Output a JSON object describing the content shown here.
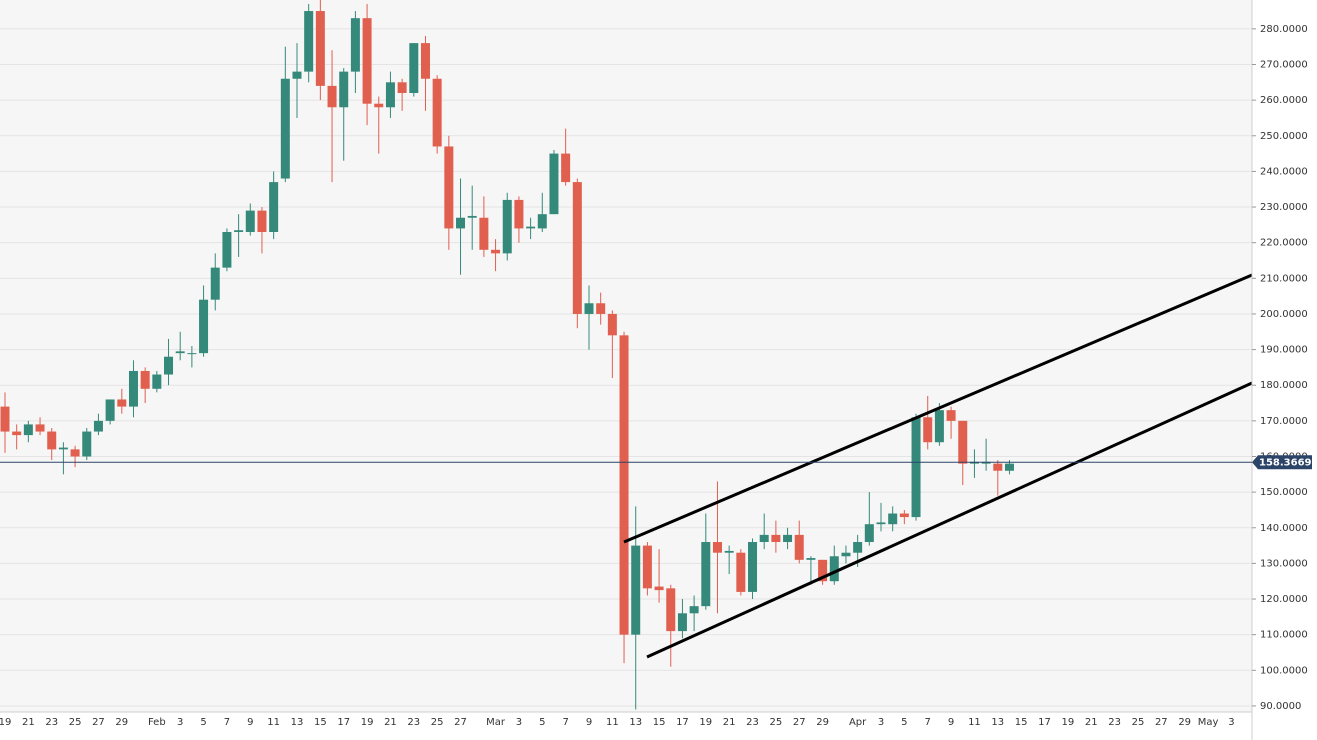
{
  "chart_data": {
    "type": "candlestick",
    "up_color": "#35897a",
    "down_color": "#e05f4e",
    "categories": [
      "19",
      null,
      "21",
      null,
      "23",
      null,
      "25",
      null,
      "27",
      null,
      "29",
      null,
      null,
      "Feb",
      null,
      "3",
      null,
      "5",
      null,
      "7",
      null,
      "9",
      null,
      "11",
      null,
      "13",
      null,
      "15",
      null,
      "17",
      null,
      "19",
      null,
      "21",
      null,
      "23",
      null,
      "25",
      null,
      "27",
      null,
      null,
      "Mar",
      null,
      "3",
      null,
      "5",
      null,
      "7",
      null,
      "9",
      null,
      "11",
      null,
      "13",
      null,
      "15",
      null,
      "17",
      null,
      "19",
      null,
      "21",
      null,
      "23",
      null,
      "25",
      null,
      "27",
      null,
      "29",
      null,
      null,
      "Apr",
      null,
      "3",
      null,
      "5",
      null,
      "7",
      null,
      "9",
      null,
      "11",
      null,
      "13",
      null,
      "15",
      null,
      "17",
      null,
      "19",
      null,
      "21",
      null,
      "23",
      null,
      "25",
      null,
      "27",
      null,
      "29",
      null,
      "May",
      null,
      "3"
    ],
    "open": [
      174,
      167,
      166,
      169,
      167,
      162,
      162,
      160,
      167,
      170,
      176,
      174,
      184,
      179,
      183,
      189,
      189,
      189,
      204,
      213,
      223,
      223,
      229,
      223,
      238,
      266,
      268,
      285,
      264,
      258,
      268,
      283,
      259,
      258,
      265,
      262,
      276,
      266,
      247,
      224,
      227,
      227,
      218,
      217,
      232,
      224,
      224,
      228,
      245,
      237,
      200,
      203,
      200,
      194,
      110,
      135,
      123.5,
      123,
      111,
      116,
      118,
      136,
      133,
      133,
      122,
      136,
      138,
      136,
      138,
      131,
      131,
      125,
      132,
      133,
      136,
      141,
      141,
      144,
      143,
      171,
      164,
      173,
      170,
      158,
      158,
      158,
      156,
      null,
      null,
      null,
      null,
      null,
      null,
      null,
      null,
      null,
      null,
      null,
      null,
      null,
      null,
      null,
      null,
      null,
      null,
      null
    ],
    "high": [
      178,
      169,
      170,
      171,
      168,
      164,
      163,
      168,
      172,
      176,
      179,
      187,
      185,
      184,
      193,
      195,
      191,
      208,
      217,
      224,
      228,
      231,
      230,
      240,
      275,
      276,
      287,
      289,
      274,
      269,
      285,
      287,
      261,
      268,
      266,
      276,
      278,
      267,
      250,
      238,
      236,
      233,
      221,
      234,
      233,
      227,
      234,
      246,
      252,
      238,
      208,
      206,
      201,
      195,
      146,
      136,
      134,
      124,
      120,
      121,
      144,
      153,
      135,
      134,
      137,
      144,
      142,
      140,
      142,
      132,
      131,
      135,
      135,
      138,
      150,
      147,
      146,
      145,
      172,
      177,
      175,
      174,
      170,
      162,
      165,
      159,
      159,
      null,
      null,
      null,
      null,
      null,
      null,
      null,
      null,
      null,
      null,
      null,
      null,
      null,
      null,
      null,
      null,
      null,
      null,
      null
    ],
    "low": [
      161,
      162,
      164,
      166,
      159,
      155,
      157,
      159,
      166,
      169,
      172,
      171,
      175,
      178,
      180,
      187,
      185,
      188,
      201,
      212,
      216,
      222,
      217,
      221,
      237,
      255,
      265,
      260,
      237,
      243,
      262,
      253,
      245,
      255,
      257,
      261,
      257,
      245,
      218,
      211,
      218,
      216,
      212,
      215,
      220,
      221,
      223,
      228,
      236,
      196,
      190,
      197,
      182,
      102,
      89,
      121,
      119,
      101,
      109,
      111,
      117,
      116,
      127,
      121,
      120,
      134,
      133,
      134,
      130,
      124,
      124,
      124,
      130,
      129,
      135,
      139,
      139,
      141,
      142,
      162,
      163,
      165,
      152,
      154,
      156,
      149,
      155,
      null,
      null,
      null,
      null,
      null,
      null,
      null,
      null,
      null,
      null,
      null,
      null,
      null,
      null,
      null,
      null,
      null,
      null,
      null
    ],
    "close": [
      167,
      166,
      169,
      167,
      162,
      162.5,
      160,
      167,
      170,
      176,
      174,
      184,
      179,
      183,
      188,
      189.5,
      189,
      204,
      213,
      223,
      223.5,
      229,
      223,
      237,
      266,
      268,
      285,
      264,
      258,
      268,
      283,
      259,
      258,
      265,
      262,
      276,
      266,
      247,
      224,
      227,
      227.5,
      218,
      217,
      232,
      224,
      224.5,
      228,
      245,
      237,
      200,
      203,
      200,
      194,
      110,
      135,
      123,
      122.5,
      111,
      116,
      118,
      136,
      133,
      133.5,
      122,
      136,
      138,
      136,
      138,
      131,
      131.5,
      125,
      132,
      133,
      136,
      141,
      141.5,
      144,
      143,
      171,
      164,
      173,
      170,
      158,
      158.5,
      158.5,
      156,
      158,
      null,
      null,
      null,
      null,
      null,
      null,
      null,
      null,
      null,
      null,
      null,
      null,
      null,
      null,
      null,
      null,
      null,
      null,
      null
    ],
    "ylim": [
      88.3,
      288.1
    ],
    "yticks": [
      {
        "value": 90,
        "label": "90.0000"
      },
      {
        "value": 100,
        "label": "100.0000"
      },
      {
        "value": 110,
        "label": "110.0000"
      },
      {
        "value": 120,
        "label": "120.0000"
      },
      {
        "value": 130,
        "label": "130.0000"
      },
      {
        "value": 140,
        "label": "140.0000"
      },
      {
        "value": 150,
        "label": "150.0000"
      },
      {
        "value": 160,
        "label": "160.0000"
      },
      {
        "value": 170,
        "label": "170.0000"
      },
      {
        "value": 180,
        "label": "180.0000"
      },
      {
        "value": 190,
        "label": "190.0000"
      },
      {
        "value": 200,
        "label": "200.0000"
      },
      {
        "value": 210,
        "label": "210.0000"
      },
      {
        "value": 220,
        "label": "220.0000"
      },
      {
        "value": 230,
        "label": "230.0000"
      },
      {
        "value": 240,
        "label": "240.0000"
      },
      {
        "value": 250,
        "label": "250.0000"
      },
      {
        "value": 260,
        "label": "260.0000"
      },
      {
        "value": 270,
        "label": "270.0000"
      },
      {
        "value": 280,
        "label": "280.0000"
      }
    ],
    "last_price": {
      "value": 158.3669,
      "label": "158.36690"
    },
    "grid": true
  }
}
